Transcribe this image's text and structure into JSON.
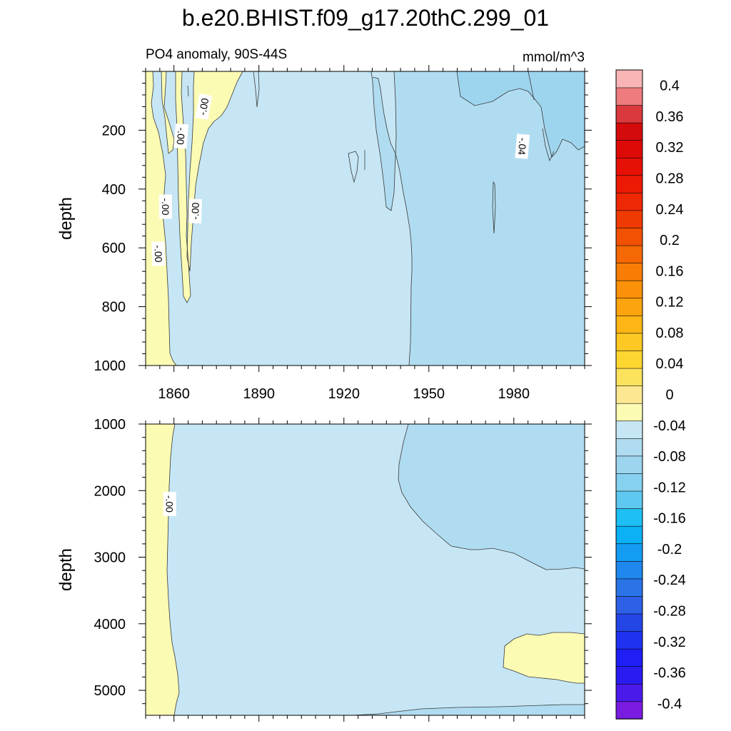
{
  "title": "b.e20.BHIST.f09_g17.20thC.299_01",
  "subtitle_left": "PO4 anomaly, 90S-44S",
  "subtitle_right": "mmol/m^3",
  "colors": {
    "c0": "#fbfbb4",
    "c1": "#c6e6f5",
    "c2": "#b0dcf1",
    "c3": "#9dd5ef",
    "colorbar": [
      "#7a1be0",
      "#4a1aeb",
      "#2a1cf0",
      "#1e1ef5",
      "#1e32f0",
      "#2446e6",
      "#2e60e6",
      "#2a74e8",
      "#1f88ef",
      "#139cf2",
      "#0bb0f5",
      "#1ec0f4",
      "#5ec8f0",
      "#86d1f0",
      "#9dd5ef",
      "#b0dcf1",
      "#c6e6f5",
      "#fbfbb4",
      "#fde891",
      "#fde25e",
      "#fdd630",
      "#fdc823",
      "#fdb616",
      "#fca40d",
      "#fb9108",
      "#f87d05",
      "#f56803",
      "#f25002",
      "#ef3a03",
      "#ee2804",
      "#ec1a05",
      "#e71006",
      "#de0a08",
      "#d30b0c",
      "#da3a3e",
      "#ee7b7d",
      "#f9b5b6"
    ]
  },
  "chart_data": [
    {
      "type": "heatmap",
      "panel": "top",
      "ylabel": "depth",
      "xlim": [
        1850,
        2005
      ],
      "ylim": [
        0,
        1000
      ],
      "y_reversed": true,
      "x_ticks": [
        1860,
        1890,
        1920,
        1950,
        1980
      ],
      "y_ticks": [
        200,
        400,
        600,
        800,
        1000
      ],
      "contour_labels": [
        {
          "text": "-.00",
          "x": 1870.5,
          "y": 120,
          "angle": -80
        },
        {
          "text": "-.00",
          "x": 1862.5,
          "y": 220,
          "angle": 95
        },
        {
          "text": "-.04",
          "x": 1983,
          "y": 255,
          "angle": 95
        },
        {
          "text": "-.00",
          "x": 1857,
          "y": 460,
          "angle": 90
        },
        {
          "text": "-.00",
          "x": 1867.5,
          "y": 475,
          "angle": -88
        },
        {
          "text": "-.00",
          "x": 1854.5,
          "y": 620,
          "angle": 88
        }
      ]
    },
    {
      "type": "heatmap",
      "panel": "bottom",
      "ylabel": "depth",
      "xlim": [
        1850,
        2005
      ],
      "ylim": [
        1000,
        5375
      ],
      "y_reversed": true,
      "x_ticks": [
        1860,
        1890,
        1920,
        1950,
        1980
      ],
      "y_ticks": [
        1000,
        2000,
        3000,
        4000,
        5000
      ],
      "contour_labels": [
        {
          "text": "-.00",
          "x": 1858.5,
          "y": 2200,
          "angle": 90
        }
      ]
    },
    {
      "type": "colorbar",
      "levels": [
        "0.4",
        "0.36",
        "0.32",
        "0.28",
        "0.24",
        "0.2",
        "0.16",
        "0.12",
        "0.08",
        "0.04",
        "0",
        "-0.04",
        "-0.08",
        "-0.12",
        "-0.16",
        "-0.2",
        "-0.24",
        "-0.28",
        "-0.32",
        "-0.36",
        "-0.4"
      ],
      "values": [
        0.4,
        0.36,
        0.32,
        0.28,
        0.24,
        0.2,
        0.16,
        0.12,
        0.08,
        0.04,
        0,
        -0.04,
        -0.08,
        -0.12,
        -0.16,
        -0.2,
        -0.24,
        -0.28,
        -0.32,
        -0.36,
        -0.4
      ],
      "range": [
        -0.42,
        0.42
      ]
    }
  ]
}
